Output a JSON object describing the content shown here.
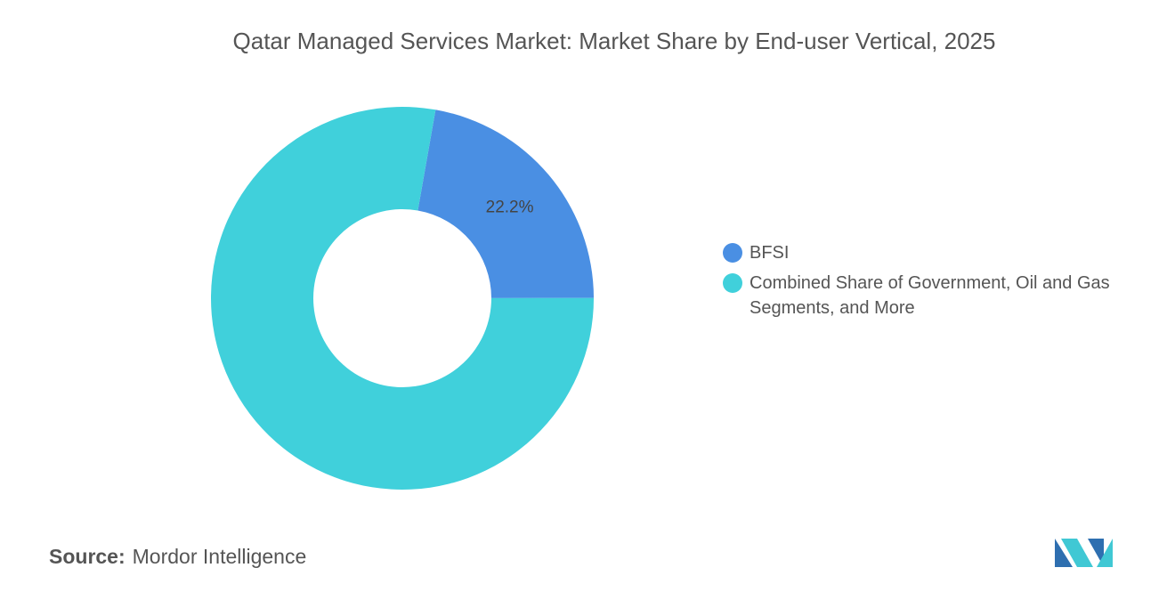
{
  "chart_data": {
    "type": "donut",
    "title": "Qatar Managed Services Market: Market Share by End-user Vertical, 2025",
    "categories": [
      "BFSI",
      "Combined Share of Government, Oil and Gas Segments, and More"
    ],
    "values": [
      22.2,
      77.8
    ],
    "value_labels": [
      "22.2%",
      null
    ],
    "colors": [
      "#4a8fe3",
      "#40d0db"
    ],
    "legend": "right"
  },
  "footer": {
    "source_label": "Source:",
    "source": "Mordor Intelligence"
  }
}
